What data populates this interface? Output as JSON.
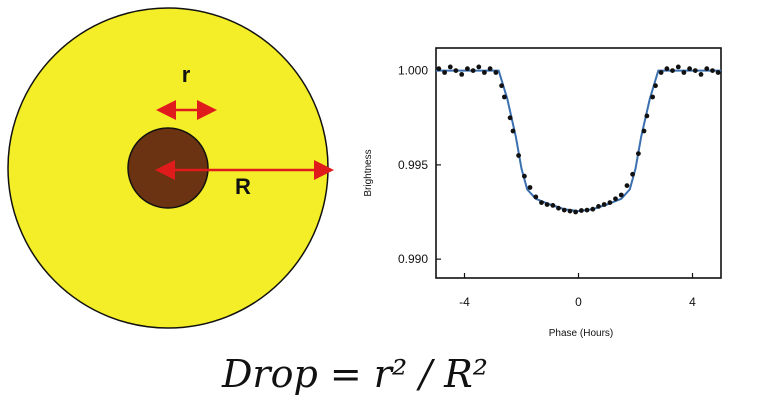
{
  "diagram": {
    "star_color": "#f3ee27",
    "planet_color": "#6b3311",
    "arrow_color": "#e01b1b",
    "label_r": "r",
    "label_R": "R"
  },
  "chart_data": {
    "type": "line",
    "title": "",
    "xlabel": "Phase (Hours)",
    "ylabel": "Brightness",
    "xlim": [
      -5,
      5
    ],
    "ylim": [
      0.989,
      1.0012
    ],
    "xticks": [
      "-4",
      "0",
      "4"
    ],
    "yticks": [
      "1.000",
      "0.995",
      "0.990"
    ],
    "xtick_values": [
      -4,
      0,
      4
    ],
    "ytick_values": [
      1.0,
      0.995,
      0.99
    ],
    "series": [
      {
        "kind": "model-line",
        "color": "#3a6fb0",
        "x": [
          -5,
          -2.8,
          -2.5,
          -2.2,
          -2.0,
          -1.8,
          -1.5,
          -1.0,
          -0.5,
          0,
          0.5,
          1.0,
          1.5,
          1.8,
          2.0,
          2.2,
          2.5,
          2.8,
          5
        ],
        "y": [
          1.0,
          1.0,
          0.9985,
          0.9965,
          0.9948,
          0.9937,
          0.9932,
          0.9929,
          0.99265,
          0.99255,
          0.99265,
          0.9929,
          0.9932,
          0.9937,
          0.9948,
          0.9965,
          0.9985,
          1.0,
          1.0
        ]
      },
      {
        "kind": "observations",
        "color": "#111111",
        "x": [
          -4.9,
          -4.7,
          -4.5,
          -4.3,
          -4.1,
          -3.9,
          -3.7,
          -3.5,
          -3.3,
          -3.1,
          -2.9,
          -2.7,
          -2.6,
          -2.4,
          -2.3,
          -2.1,
          -1.9,
          -1.7,
          -1.5,
          -1.3,
          -1.1,
          -0.9,
          -0.7,
          -0.5,
          -0.3,
          -0.1,
          0.1,
          0.3,
          0.5,
          0.7,
          0.9,
          1.1,
          1.3,
          1.5,
          1.7,
          1.9,
          2.1,
          2.3,
          2.4,
          2.6,
          2.7,
          2.9,
          3.1,
          3.3,
          3.5,
          3.7,
          3.9,
          4.1,
          4.3,
          4.5,
          4.7,
          4.9
        ],
        "y": [
          1.0001,
          0.9999,
          1.0002,
          1.0,
          0.9998,
          1.0001,
          1.0,
          1.0002,
          0.9999,
          1.0001,
          0.9999,
          0.9992,
          0.9986,
          0.9975,
          0.9968,
          0.9955,
          0.9944,
          0.9938,
          0.9933,
          0.993,
          0.9929,
          0.99285,
          0.9927,
          0.9926,
          0.99255,
          0.9925,
          0.99258,
          0.9926,
          0.99265,
          0.9928,
          0.9929,
          0.993,
          0.9932,
          0.9934,
          0.9939,
          0.9945,
          0.9956,
          0.9968,
          0.9976,
          0.9986,
          0.9992,
          0.9999,
          1.0001,
          1.0,
          1.0002,
          0.9999,
          1.0001,
          1.0,
          0.9998,
          1.0001,
          1.0,
          0.9999
        ]
      }
    ]
  },
  "formula": {
    "text": "Drop = r² / R²"
  }
}
